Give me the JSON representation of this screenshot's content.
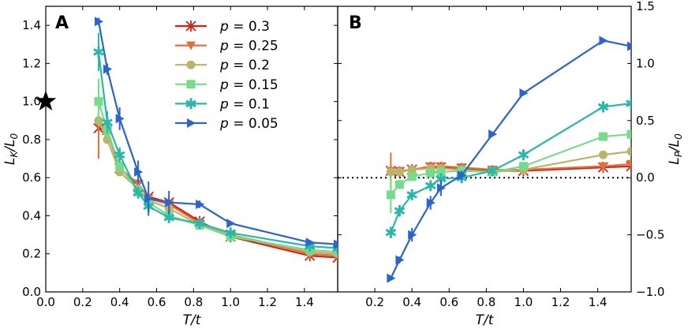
{
  "chart_data": [
    {
      "panel": "A",
      "type": "line",
      "xlabel": "T/t",
      "ylabel": "L_K/L_0",
      "xlim": [
        0.0,
        1.58
      ],
      "ylim": [
        0.0,
        1.5
      ],
      "xticks": [
        0.0,
        0.2,
        0.4,
        0.6,
        0.8,
        1.0,
        1.2,
        1.4
      ],
      "yticks": [
        0.0,
        0.2,
        0.4,
        0.6,
        0.8,
        1.0,
        1.2,
        1.4
      ],
      "xtick_labels": [
        "0.0",
        "0.2",
        "0.4",
        "0.6",
        "0.8",
        "1.0",
        "1.2",
        "1.4"
      ],
      "ytick_labels": [
        "0.0",
        "0.2",
        "0.4",
        "0.6",
        "0.8",
        "1.0",
        "1.2",
        "1.4"
      ],
      "annotation_star": {
        "x": 0.0,
        "y": 1.0
      },
      "legend": "top-center",
      "series": [
        {
          "name": "p = 0.3",
          "p_label": "0.3",
          "color": "#d62010",
          "marker": "x",
          "x": [
            0.286,
            0.333,
            0.4,
            0.5,
            0.556,
            0.667,
            0.833,
            1.0,
            1.429,
            1.58
          ],
          "y": [
            0.86,
            0.85,
            0.65,
            0.56,
            0.5,
            0.47,
            0.37,
            0.29,
            0.19,
            0.18
          ],
          "err": [
            0.03,
            0.02,
            0.02,
            0.02,
            0.02,
            0.02,
            0.01,
            0.01,
            0.01,
            0.0
          ]
        },
        {
          "name": "p = 0.25",
          "p_label": "0.25",
          "color": "#e0703a",
          "marker": "v",
          "x": [
            0.286,
            0.333,
            0.4,
            0.5,
            0.556,
            0.667,
            0.833,
            1.0,
            1.429,
            1.58
          ],
          "y": [
            0.88,
            0.84,
            0.65,
            0.57,
            0.49,
            0.46,
            0.36,
            0.3,
            0.2,
            0.19
          ],
          "err": [
            0.18,
            0.03,
            0.02,
            0.02,
            0.02,
            0.02,
            0.01,
            0.01,
            0.01,
            0.0
          ]
        },
        {
          "name": "p = 0.2",
          "p_label": "0.2",
          "color": "#b9b46a",
          "marker": "o",
          "x": [
            0.286,
            0.333,
            0.4,
            0.5,
            0.556,
            0.667,
            0.833,
            1.0,
            1.429,
            1.58
          ],
          "y": [
            0.9,
            0.8,
            0.63,
            0.54,
            0.48,
            0.44,
            0.35,
            0.3,
            0.21,
            0.2
          ],
          "err": [
            0.03,
            0.02,
            0.02,
            0.02,
            0.02,
            0.02,
            0.01,
            0.01,
            0.01,
            0.0
          ]
        },
        {
          "name": "p = 0.15",
          "p_label": "0.15",
          "color": "#74dc8a",
          "marker": "s",
          "x": [
            0.286,
            0.333,
            0.4,
            0.5,
            0.556,
            0.667,
            0.833,
            1.0,
            1.429,
            1.58
          ],
          "y": [
            1.0,
            0.85,
            0.66,
            0.53,
            0.47,
            0.4,
            0.35,
            0.29,
            0.22,
            0.21
          ],
          "err": [
            0.12,
            0.05,
            0.03,
            0.03,
            0.02,
            0.02,
            0.01,
            0.01,
            0.01,
            0.0
          ]
        },
        {
          "name": "p = 0.1",
          "p_label": "0.1",
          "color": "#2ab7a9",
          "marker": "star",
          "x": [
            0.286,
            0.333,
            0.4,
            0.5,
            0.556,
            0.667,
            0.833,
            1.0,
            1.429,
            1.58
          ],
          "y": [
            1.26,
            0.89,
            0.72,
            0.52,
            0.45,
            0.39,
            0.36,
            0.31,
            0.24,
            0.23
          ],
          "err": [
            0.1,
            0.06,
            0.04,
            0.03,
            0.03,
            0.02,
            0.01,
            0.01,
            0.01,
            0.0
          ]
        },
        {
          "name": "p = 0.05",
          "p_label": "0.05",
          "color": "#2a64cf",
          "marker": ">",
          "x": [
            0.286,
            0.333,
            0.4,
            0.5,
            0.556,
            0.667,
            0.833,
            1.0,
            1.429,
            1.58
          ],
          "y": [
            1.42,
            1.17,
            0.91,
            0.63,
            0.49,
            0.47,
            0.46,
            0.36,
            0.26,
            0.25
          ],
          "err": [
            0.02,
            0.03,
            0.06,
            0.06,
            0.09,
            0.06,
            0.02,
            0.01,
            0.01,
            0.0
          ]
        }
      ]
    },
    {
      "panel": "B",
      "type": "line",
      "xlabel": "T/t",
      "ylabel": "L_P/L_0",
      "xlim": [
        0.0,
        1.58
      ],
      "ylim": [
        -1.0,
        1.5
      ],
      "xticks": [
        0.2,
        0.4,
        0.6,
        0.8,
        1.0,
        1.2,
        1.4
      ],
      "yticks": [
        -1.0,
        -0.5,
        0.0,
        0.5,
        1.0,
        1.5
      ],
      "xtick_labels": [
        "0.2",
        "0.4",
        "0.6",
        "0.8",
        "1.0",
        "1.2",
        "1.4"
      ],
      "ytick_labels": [
        "−1.0",
        "−0.5",
        "0.0",
        "0.5",
        "1.0",
        "1.5"
      ],
      "reference_line": {
        "y": 0.0,
        "style": "dotted"
      },
      "series": [
        {
          "name": "p = 0.3",
          "color": "#d62010",
          "marker": "x",
          "x": [
            0.286,
            0.333,
            0.4,
            0.5,
            0.556,
            0.667,
            0.833,
            1.0,
            1.429,
            1.58
          ],
          "y": [
            0.06,
            0.05,
            0.07,
            0.09,
            0.09,
            0.08,
            0.06,
            0.06,
            0.09,
            0.1
          ],
          "err": [
            0.03,
            0.02,
            0.02,
            0.02,
            0.02,
            0.02,
            0.01,
            0.01,
            0.01,
            0.0
          ]
        },
        {
          "name": "p = 0.25",
          "color": "#e0703a",
          "marker": "v",
          "x": [
            0.286,
            0.333,
            0.4,
            0.5,
            0.556,
            0.667,
            0.833,
            1.0,
            1.429,
            1.58
          ],
          "y": [
            0.06,
            0.06,
            0.07,
            0.1,
            0.1,
            0.09,
            0.07,
            0.07,
            0.1,
            0.12
          ],
          "err": [
            0.16,
            0.03,
            0.02,
            0.02,
            0.02,
            0.02,
            0.01,
            0.01,
            0.01,
            0.0
          ]
        },
        {
          "name": "p = 0.2",
          "color": "#b9b46a",
          "marker": "o",
          "x": [
            0.286,
            0.333,
            0.4,
            0.5,
            0.556,
            0.667,
            0.833,
            1.0,
            1.429,
            1.58
          ],
          "y": [
            0.05,
            0.05,
            0.07,
            0.08,
            0.08,
            0.07,
            0.05,
            0.07,
            0.2,
            0.23
          ],
          "err": [
            0.03,
            0.02,
            0.02,
            0.02,
            0.02,
            0.02,
            0.01,
            0.01,
            0.01,
            0.0
          ]
        },
        {
          "name": "p = 0.15",
          "color": "#74dc8a",
          "marker": "s",
          "x": [
            0.286,
            0.333,
            0.4,
            0.5,
            0.556,
            0.667,
            0.833,
            1.0,
            1.429,
            1.58
          ],
          "y": [
            -0.15,
            -0.06,
            0.01,
            0.04,
            0.05,
            0.06,
            0.05,
            0.1,
            0.36,
            0.38
          ],
          "err": [
            0.16,
            0.04,
            0.03,
            0.03,
            0.02,
            0.02,
            0.01,
            0.01,
            0.01,
            0.0
          ]
        },
        {
          "name": "p = 0.1",
          "color": "#2ab7a9",
          "marker": "star",
          "x": [
            0.286,
            0.333,
            0.4,
            0.5,
            0.556,
            0.667,
            0.833,
            1.0,
            1.429,
            1.58
          ],
          "y": [
            -0.48,
            -0.29,
            -0.15,
            -0.07,
            -0.01,
            0.0,
            0.06,
            0.2,
            0.62,
            0.65
          ],
          "err": [
            0.05,
            0.05,
            0.04,
            0.04,
            0.03,
            0.02,
            0.01,
            0.01,
            0.02,
            0.0
          ]
        },
        {
          "name": "p = 0.05",
          "color": "#2a64cf",
          "marker": ">",
          "x": [
            0.286,
            0.333,
            0.4,
            0.5,
            0.556,
            0.667,
            0.833,
            1.0,
            1.429,
            1.58
          ],
          "y": [
            -0.88,
            -0.72,
            -0.5,
            -0.22,
            -0.09,
            0.02,
            0.38,
            0.74,
            1.2,
            1.15
          ],
          "err": [
            0.02,
            0.03,
            0.06,
            0.06,
            0.07,
            0.04,
            0.02,
            0.02,
            0.02,
            0.0
          ]
        }
      ]
    }
  ],
  "labels": {
    "panel_a": "A",
    "panel_b": "B",
    "xlabel_a": "T/t",
    "xlabel_b": "T/t",
    "ylabel_a_main": "L",
    "ylabel_a_sub": "K",
    "ylabel_a_tail": "/L",
    "ylabel_a_sub2": "0",
    "ylabel_b_main": "L",
    "ylabel_b_sub": "P",
    "ylabel_b_tail": "/L",
    "ylabel_b_sub2": "0",
    "legend_prefix": "p",
    "legend_eq": " = "
  }
}
